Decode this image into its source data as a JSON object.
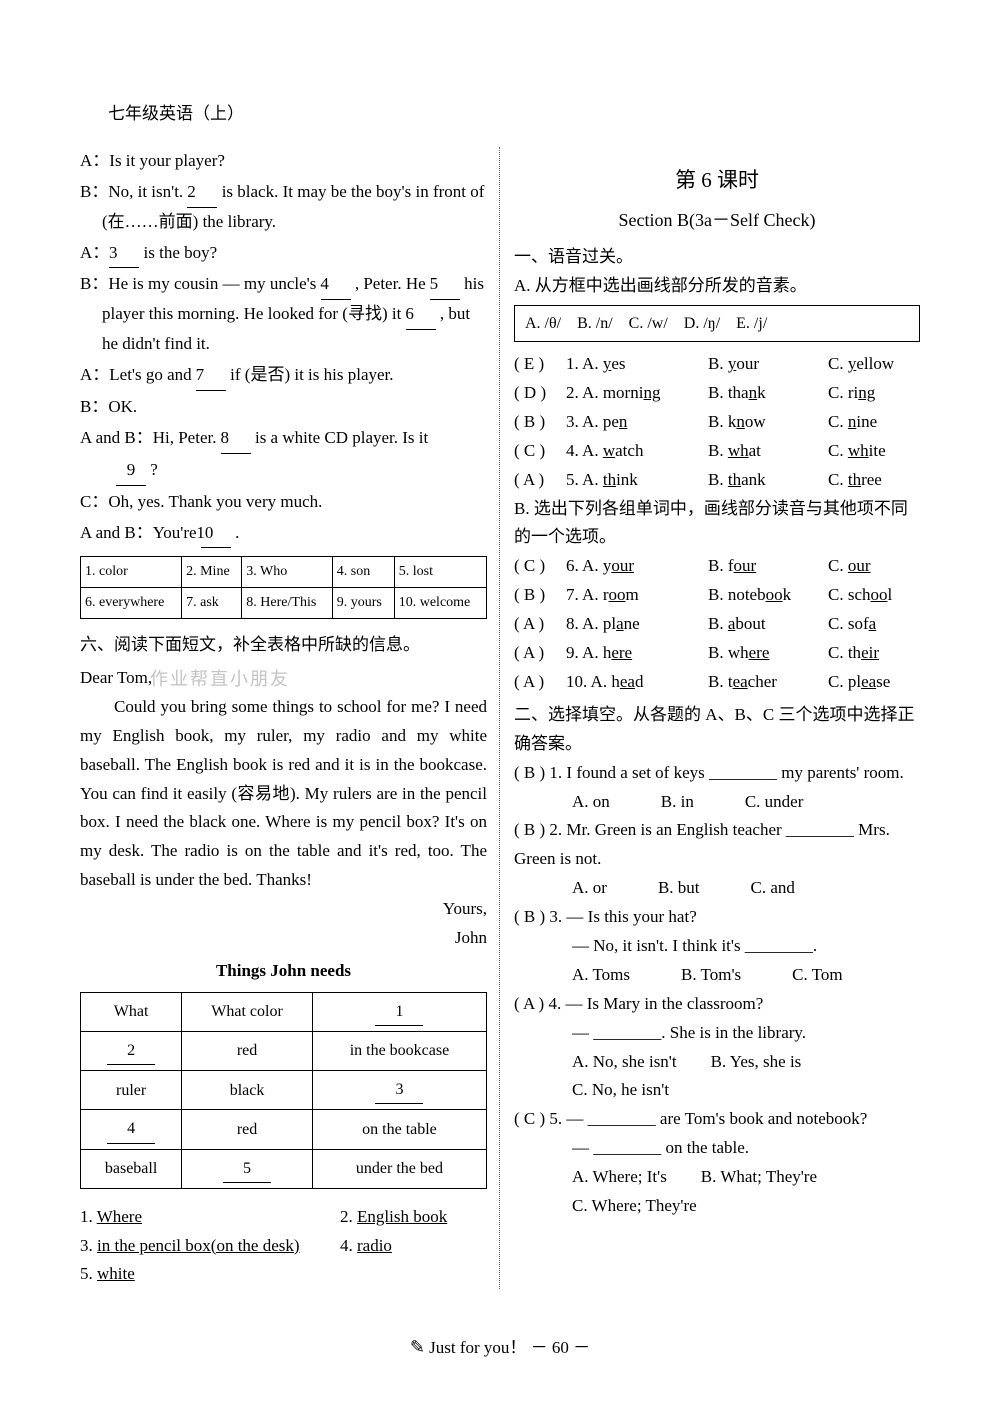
{
  "header": "七年级英语（上）",
  "dialogue": {
    "a1": "A：Is it your player?",
    "b1_pre": "B：No, it isn't. ",
    "b1_blank": "2",
    "b1_post": " is black. It may be the boy's in front of (在……前面) the library.",
    "a2_pre": "A：",
    "a2_blank": "3",
    "a2_post": " is the boy?",
    "b2_pre": "B：He is my cousin — my uncle's ",
    "b2_blank": "4",
    "b2_post": " , Peter. He ",
    "b2_blank2": "5",
    "b2_post2": " his player this morning. He looked for (寻找) it ",
    "b2_blank3": "6",
    "b2_post3": " , but he didn't find it.",
    "a3_pre": "A：Let's go and ",
    "a3_blank": "7",
    "a3_post": " if (是否) it is his player.",
    "b3": "B：OK.",
    "ab_pre": "A and B：Hi, Peter. ",
    "ab_blank": "8",
    "ab_post": " is a white CD player. Is it ",
    "ab_blank2": "9",
    "ab_post2": " ?",
    "c1": "C：Oh, yes. Thank you very much.",
    "ab2_pre": "A and B：You're ",
    "ab2_blank": "10",
    "ab2_post": " ."
  },
  "ans_grid": [
    [
      "1. color",
      "2. Mine",
      "3. Who",
      "4. son",
      "5. lost"
    ],
    [
      "6. everywhere",
      "7. ask",
      "8. Here/This",
      "9. yours",
      "10. welcome"
    ]
  ],
  "section6_heading": "六、阅读下面短文，补全表格中所缺的信息。",
  "letter": {
    "greeting": "Dear Tom,",
    "watermark": "作业帮直小朋友",
    "body": "Could you bring some things to school for me? I need my English book, my ruler, my radio and my white baseball. The English book is red and it is in the bookcase. You can find it easily (容易地). My rulers are in the pencil box. I need the black one. Where is my pencil box? It's on my desk. The radio is on the table and it's red, too. The baseball is under the bed. Thanks!",
    "sign1": "Yours,",
    "sign2": "John"
  },
  "needs_title": "Things John needs",
  "needs_table": {
    "h1": "What",
    "h2": "What color",
    "h3_blank": "1",
    "r1c1_blank": "2",
    "r1c2": "red",
    "r1c3": "in the bookcase",
    "r2c1": "ruler",
    "r2c2": "black",
    "r2c3_blank": "3",
    "r3c1_blank": "4",
    "r3c2": "red",
    "r3c3": "on the table",
    "r4c1": "baseball",
    "r4c2_blank": "5",
    "r4c3": "under the bed"
  },
  "needs_answers": [
    {
      "n": "1.",
      "a": "Where"
    },
    {
      "n": "2.",
      "a": "English book"
    },
    {
      "n": "3.",
      "a": "in the pencil box(on the desk)"
    },
    {
      "n": "4.",
      "a": "radio"
    },
    {
      "n": "5.",
      "a": "white"
    }
  ],
  "lesson6": {
    "title": "第 6 课时",
    "sub": "Section B(3a－Self Check)",
    "h1": "一、语音过关。",
    "hA": "A. 从方框中选出画线部分所发的音素。",
    "box": "A. /θ/　B. /n/　C. /w/　D. /ŋ/　E. /j/",
    "phonA": [
      {
        "ans": "( E )",
        "n": "1.",
        "a": "A. ",
        "aw": "y",
        "awr": "es",
        "b": "B. ",
        "bw": "y",
        "bwr": "our",
        "c": "C. ",
        "cw": "y",
        "cwr": "ellow"
      },
      {
        "ans": "( D )",
        "n": "2.",
        "a": "A. morni",
        "aw": "ng",
        "awr": "",
        "b": "B. tha",
        "bw": "n",
        "bwr": "k",
        "c": "C. ri",
        "cw": "ng",
        "cwr": ""
      },
      {
        "ans": "( B )",
        "n": "3.",
        "a": "A. pe",
        "aw": "n",
        "awr": "",
        "b": "B. k",
        "bw": "n",
        "bwr": "ow",
        "c": "C. ",
        "cw": "n",
        "cwr": "ine"
      },
      {
        "ans": "( C )",
        "n": "4.",
        "a": "A. ",
        "aw": "w",
        "awr": "atch",
        "b": "B. ",
        "bw": "wh",
        "bwr": "at",
        "c": "C. ",
        "cw": "wh",
        "cwr": "ite"
      },
      {
        "ans": "( A )",
        "n": "5.",
        "a": "A. ",
        "aw": "th",
        "awr": "ink",
        "b": "B. ",
        "bw": "th",
        "bwr": "ank",
        "c": "C. ",
        "cw": "th",
        "cwr": "ree"
      }
    ],
    "hB": "B. 选出下列各组单词中，画线部分读音与其他项不同的一个选项。",
    "phonB": [
      {
        "ans": "( C )",
        "n": "6.",
        "a": "A. y",
        "aw": "our",
        "b": "B. f",
        "bw": "our",
        "c": "C. ",
        "cw": "our"
      },
      {
        "ans": "( B )",
        "n": "7.",
        "a": "A. r",
        "aw": "oo",
        "ar": "m",
        "b": "B. noteb",
        "bw": "oo",
        "br": "k",
        "c": "C. sch",
        "cw": "oo",
        "cr": "l"
      },
      {
        "ans": "( A )",
        "n": "8.",
        "a": "A. pl",
        "aw": "a",
        "ar": "ne",
        "b": "B. ",
        "bw": "a",
        "br": "bout",
        "c": "C. sof",
        "cw": "a",
        "cr": ""
      },
      {
        "ans": "( A )",
        "n": "9.",
        "a": "A. h",
        "aw": "ere",
        "ar": "",
        "b": "B. wh",
        "bw": "ere",
        "br": "",
        "c": "C. th",
        "cw": "eir",
        "cr": ""
      },
      {
        "ans": "( A )",
        "n": "10.",
        "a": "A. h",
        "aw": "ea",
        "ar": "d",
        "b": "B. t",
        "bw": "ea",
        "br": "cher",
        "c": "C. pl",
        "cw": "ea",
        "cr": "se"
      }
    ],
    "h2": "二、选择填空。从各题的 A、B、C 三个选项中选择正确答案。",
    "mcq": [
      {
        "ans": "( B )",
        "n": "1.",
        "stem": "I found a set of keys ________ my parents' room.",
        "opts": [
          "A. on",
          "B. in",
          "C. under"
        ]
      },
      {
        "ans": "( B )",
        "n": "2.",
        "stem": "Mr. Green is an English teacher ________ Mrs. Green is not.",
        "opts": [
          "A. or",
          "B. but",
          "C. and"
        ]
      },
      {
        "ans": "( B )",
        "n": "3.",
        "stem": "— Is this your hat?",
        "stem2": "— No, it isn't. I think it's ________.",
        "opts": [
          "A. Toms",
          "B. Tom's",
          "C. Tom"
        ]
      },
      {
        "ans": "( A )",
        "n": "4.",
        "stem": "— Is Mary in the classroom?",
        "stem2": "— ________. She is in the library.",
        "opts": [
          "A. No, she isn't",
          "B. Yes, she is",
          "C. No, he isn't"
        ]
      },
      {
        "ans": "( C )",
        "n": "5.",
        "stem": "— ________ are Tom's book and notebook?",
        "stem2": "— ________ on the table.",
        "opts": [
          "A. Where; It's",
          "B. What; They're",
          "C. Where; They're"
        ]
      }
    ]
  },
  "footer": {
    "icon": "✎",
    "text": " Just for you！ － 60 －"
  }
}
